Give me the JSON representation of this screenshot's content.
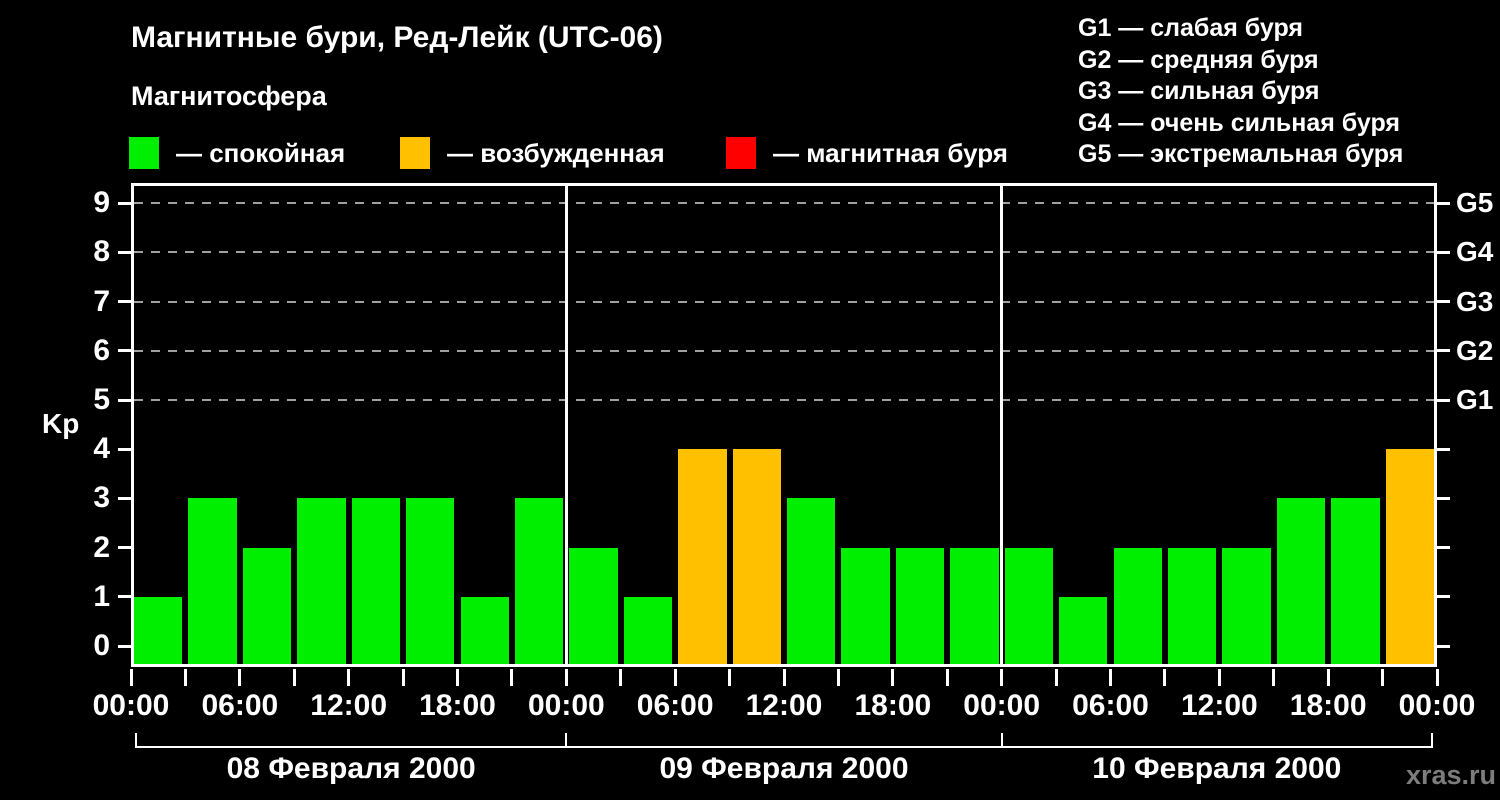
{
  "title": "Магнитные бури, Ред-Лейк (UTC-06)",
  "subtitle": "Магнитосфера",
  "activity_legend": [
    {
      "name": "quiet",
      "label": "— спокойная",
      "color": "#00EE00"
    },
    {
      "name": "active",
      "label": "— возбужденная",
      "color": "#FFC000"
    },
    {
      "name": "storm",
      "label": "— магнитная буря",
      "color": "#FF0000"
    }
  ],
  "storm_scale_legend": [
    {
      "label": "G1 — слабая буря"
    },
    {
      "label": "G2 — средняя буря"
    },
    {
      "label": "G3 — сильная буря"
    },
    {
      "label": "G4 — очень сильная буря"
    },
    {
      "label": "G5 — экстремальная буря"
    }
  ],
  "watermark": "xras.ru",
  "chart_data": {
    "type": "bar",
    "title": "Магнитные бури, Ред-Лейк (UTC-06)",
    "ylabel": "Kp",
    "ylim": [
      0,
      9
    ],
    "yticks": [
      0,
      1,
      2,
      3,
      4,
      5,
      6,
      7,
      8,
      9
    ],
    "gridline_levels": [
      5,
      6,
      7,
      8,
      9
    ],
    "grid": "dashed horizontal at G-storm levels only",
    "right_axis": [
      {
        "level": 5,
        "label": "G1"
      },
      {
        "level": 6,
        "label": "G2"
      },
      {
        "level": 7,
        "label": "G3"
      },
      {
        "level": 8,
        "label": "G4"
      },
      {
        "level": 9,
        "label": "G5"
      }
    ],
    "bar_interval_hours": 3,
    "x_tick_labels": [
      "00:00",
      "06:00",
      "12:00",
      "18:00",
      "00:00",
      "06:00",
      "12:00",
      "18:00",
      "00:00",
      "06:00",
      "12:00",
      "18:00",
      "00:00"
    ],
    "series": [
      {
        "date": "08 Февраля 2000",
        "kp": [
          1,
          3,
          2,
          3,
          3,
          3,
          1,
          3
        ]
      },
      {
        "date": "09 Февраля 2000",
        "kp": [
          2,
          1,
          4,
          4,
          3,
          2,
          2,
          2
        ]
      },
      {
        "date": "10 Февраля 2000",
        "kp": [
          2,
          1,
          2,
          2,
          2,
          3,
          3,
          4
        ]
      }
    ],
    "color_rules": {
      "quiet_max_kp": 3,
      "quiet_color": "#00EE00",
      "active_kp": 4,
      "active_color": "#FFC000",
      "storm_min_kp": 5,
      "storm_color": "#FF0000"
    },
    "axis_color": "#FFFFFF",
    "gridline_color": "#A0A0A0",
    "background_color": "#000000"
  }
}
